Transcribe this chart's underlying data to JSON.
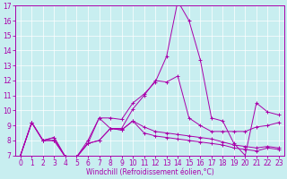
{
  "xlabel": "Windchill (Refroidissement éolien,°C)",
  "xlim": [
    -0.5,
    23.5
  ],
  "ylim": [
    7,
    17
  ],
  "yticks": [
    7,
    8,
    9,
    10,
    11,
    12,
    13,
    14,
    15,
    16,
    17
  ],
  "xticks": [
    0,
    1,
    2,
    3,
    4,
    5,
    6,
    7,
    8,
    9,
    10,
    11,
    12,
    13,
    14,
    15,
    16,
    17,
    18,
    19,
    20,
    21,
    22,
    23
  ],
  "background_color": "#c8eef0",
  "line_color": "#aa00aa",
  "grid_color": "#ffffff",
  "lines": [
    [
      7.0,
      9.2,
      8.0,
      8.2,
      6.9,
      6.9,
      8.0,
      9.5,
      9.5,
      9.4,
      10.5,
      11.1,
      11.9,
      13.6,
      17.3,
      16.0,
      13.4,
      9.5,
      9.3,
      7.8,
      7.0,
      10.5,
      9.9,
      9.7
    ],
    [
      7.0,
      9.2,
      8.0,
      8.2,
      6.9,
      6.9,
      7.8,
      9.5,
      8.8,
      8.8,
      10.1,
      11.0,
      12.0,
      11.9,
      12.3,
      9.5,
      9.0,
      8.6,
      8.6,
      8.6,
      8.6,
      8.9,
      9.0,
      9.2
    ],
    [
      7.0,
      9.2,
      8.0,
      8.0,
      6.9,
      6.9,
      7.8,
      8.0,
      8.8,
      8.7,
      9.3,
      8.9,
      8.6,
      8.5,
      8.4,
      8.3,
      8.2,
      8.1,
      7.9,
      7.7,
      7.6,
      7.5,
      7.6,
      7.5
    ],
    [
      7.0,
      9.2,
      8.0,
      8.0,
      6.9,
      6.9,
      7.8,
      8.0,
      8.8,
      8.7,
      9.3,
      8.5,
      8.3,
      8.2,
      8.1,
      8.0,
      7.9,
      7.8,
      7.7,
      7.5,
      7.4,
      7.3,
      7.5,
      7.4
    ]
  ],
  "tick_fontsize": 5.5,
  "xlabel_fontsize": 5.5
}
